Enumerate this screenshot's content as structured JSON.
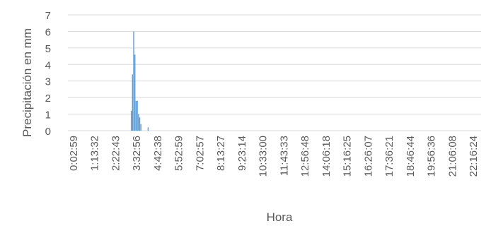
{
  "chart_data": {
    "type": "bar",
    "title": "",
    "xlabel": "Hora",
    "ylabel": "Precipitación en mm",
    "ylim": [
      0,
      7
    ],
    "yticks": [
      0,
      1,
      2,
      3,
      4,
      5,
      6,
      7
    ],
    "grid": true,
    "legend": "none",
    "colors": {
      "bar": "#5b9bd5",
      "grid": "#d9d9d9",
      "text": "#595959"
    },
    "xticks": [
      "0:02:59",
      "1:13:32",
      "2:22:43",
      "3:32:56",
      "4:42:38",
      "5:52:59",
      "7:02:57",
      "8:13:27",
      "9:23:14",
      "10:33:00",
      "11:43:33",
      "12:56:48",
      "14:06:18",
      "15:16:25",
      "16:26:07",
      "17:36:21",
      "18:46:44",
      "19:56:36",
      "21:06:08",
      "22:16:24"
    ],
    "x_range": [
      "0:02:59",
      "22:16:24"
    ],
    "bars": [
      {
        "x": "3:18:00",
        "y": 1.2
      },
      {
        "x": "3:22:00",
        "y": 3.4
      },
      {
        "x": "3:26:00",
        "y": 6.0
      },
      {
        "x": "3:30:00",
        "y": 4.6
      },
      {
        "x": "3:34:00",
        "y": 1.8
      },
      {
        "x": "3:38:00",
        "y": 1.8
      },
      {
        "x": "3:42:00",
        "y": 1.0
      },
      {
        "x": "3:46:00",
        "y": 0.8
      },
      {
        "x": "3:50:00",
        "y": 0.4
      },
      {
        "x": "4:14:00",
        "y": 0.2
      }
    ]
  }
}
